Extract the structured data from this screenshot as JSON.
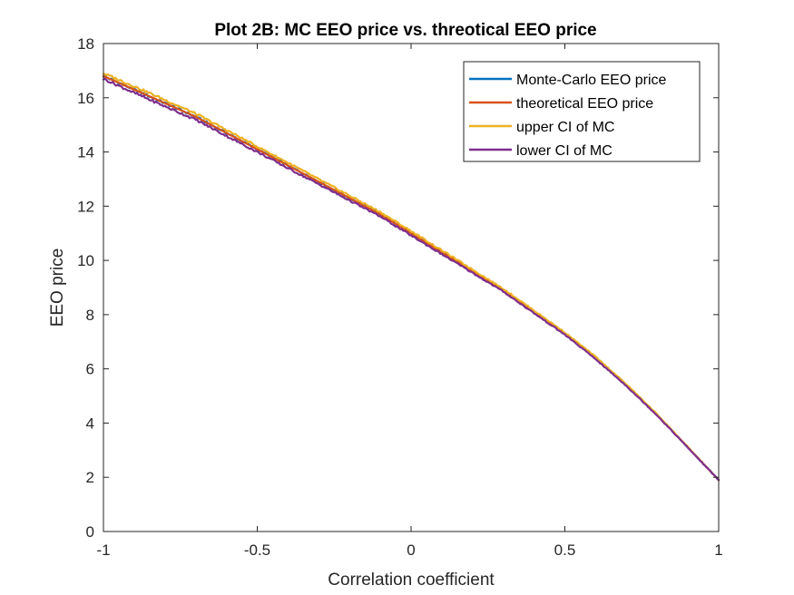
{
  "chart_data": {
    "type": "line",
    "title": "Plot 2B: MC EEO price vs. threotical EEO price",
    "xlabel": "Correlation coefficient",
    "ylabel": "EEO price",
    "xlim": [
      -1,
      1
    ],
    "ylim": [
      0,
      18
    ],
    "xticks": [
      -1,
      -0.5,
      0,
      0.5,
      1
    ],
    "xtick_labels": [
      "-1",
      "-0.5",
      "0",
      "0.5",
      "1"
    ],
    "yticks": [
      0,
      2,
      4,
      6,
      8,
      10,
      12,
      14,
      16,
      18
    ],
    "ytick_labels": [
      "0",
      "2",
      "4",
      "6",
      "8",
      "10",
      "12",
      "14",
      "16",
      "18"
    ],
    "grid": false,
    "legend_position": "top-right",
    "x": [
      -1,
      -0.9,
      -0.8,
      -0.7,
      -0.6,
      -0.5,
      -0.4,
      -0.3,
      -0.2,
      -0.1,
      0,
      0.1,
      0.2,
      0.3,
      0.4,
      0.5,
      0.6,
      0.7,
      0.8,
      0.9,
      1
    ],
    "series": [
      {
        "name": "Monte-Carlo EEO price",
        "color": "#0072BD",
        "values": [
          16.8,
          16.3,
          15.8,
          15.3,
          14.7,
          14.1,
          13.5,
          12.9,
          12.3,
          11.7,
          11.0,
          10.3,
          9.6,
          8.9,
          8.1,
          7.3,
          6.4,
          5.4,
          4.3,
          3.1,
          1.9
        ]
      },
      {
        "name": "theoretical EEO price",
        "color": "#D95319",
        "values": [
          16.8,
          16.3,
          15.8,
          15.3,
          14.7,
          14.1,
          13.5,
          12.9,
          12.3,
          11.7,
          11.0,
          10.3,
          9.6,
          8.9,
          8.1,
          7.3,
          6.4,
          5.4,
          4.3,
          3.1,
          1.9
        ]
      },
      {
        "name": "upper CI of MC",
        "color": "#EDB120",
        "values": [
          16.9,
          16.42,
          15.92,
          15.41,
          14.81,
          14.2,
          13.6,
          12.99,
          12.39,
          11.78,
          11.08,
          10.37,
          9.66,
          8.95,
          8.15,
          7.34,
          6.44,
          5.43,
          4.32,
          3.11,
          1.9
        ]
      },
      {
        "name": "lower CI of MC",
        "color": "#7E2F8E",
        "values": [
          16.7,
          16.18,
          15.68,
          15.19,
          14.59,
          14.0,
          13.4,
          12.81,
          12.21,
          11.62,
          10.92,
          10.23,
          9.54,
          8.85,
          8.05,
          7.26,
          6.36,
          5.37,
          4.28,
          3.09,
          1.9
        ]
      }
    ]
  }
}
